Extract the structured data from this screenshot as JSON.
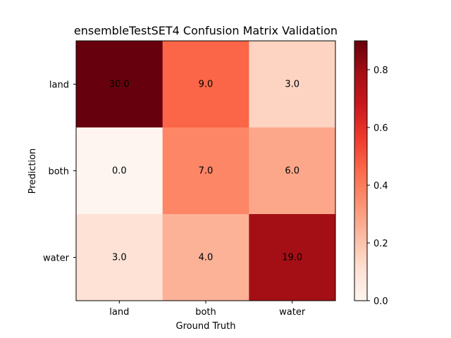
{
  "chart_data": {
    "type": "heatmap",
    "title": "ensembleTestSET4 Confusion Matrix Validation",
    "xlabel": "Ground Truth",
    "ylabel": "Prediction",
    "x_categories": [
      "land",
      "both",
      "water"
    ],
    "y_categories": [
      "land",
      "both",
      "water"
    ],
    "values": [
      [
        30.0,
        9.0,
        3.0
      ],
      [
        0.0,
        7.0,
        6.0
      ],
      [
        3.0,
        4.0,
        19.0
      ]
    ],
    "cell_labels": [
      [
        "30.0",
        "9.0",
        "3.0"
      ],
      [
        "0.0",
        "7.0",
        "6.0"
      ],
      [
        "3.0",
        "4.0",
        "19.0"
      ]
    ],
    "normalized": [
      [
        0.9,
        0.46,
        0.15
      ],
      [
        0.0,
        0.37,
        0.28
      ],
      [
        0.1,
        0.25,
        0.79
      ]
    ],
    "colormap": "Reds",
    "colorbar": {
      "range": [
        0.0,
        0.9
      ],
      "ticks": [
        0.0,
        0.2,
        0.4,
        0.6,
        0.8
      ],
      "tick_labels": [
        "0.0",
        "0.2",
        "0.4",
        "0.6",
        "0.8"
      ]
    },
    "grid": false
  }
}
